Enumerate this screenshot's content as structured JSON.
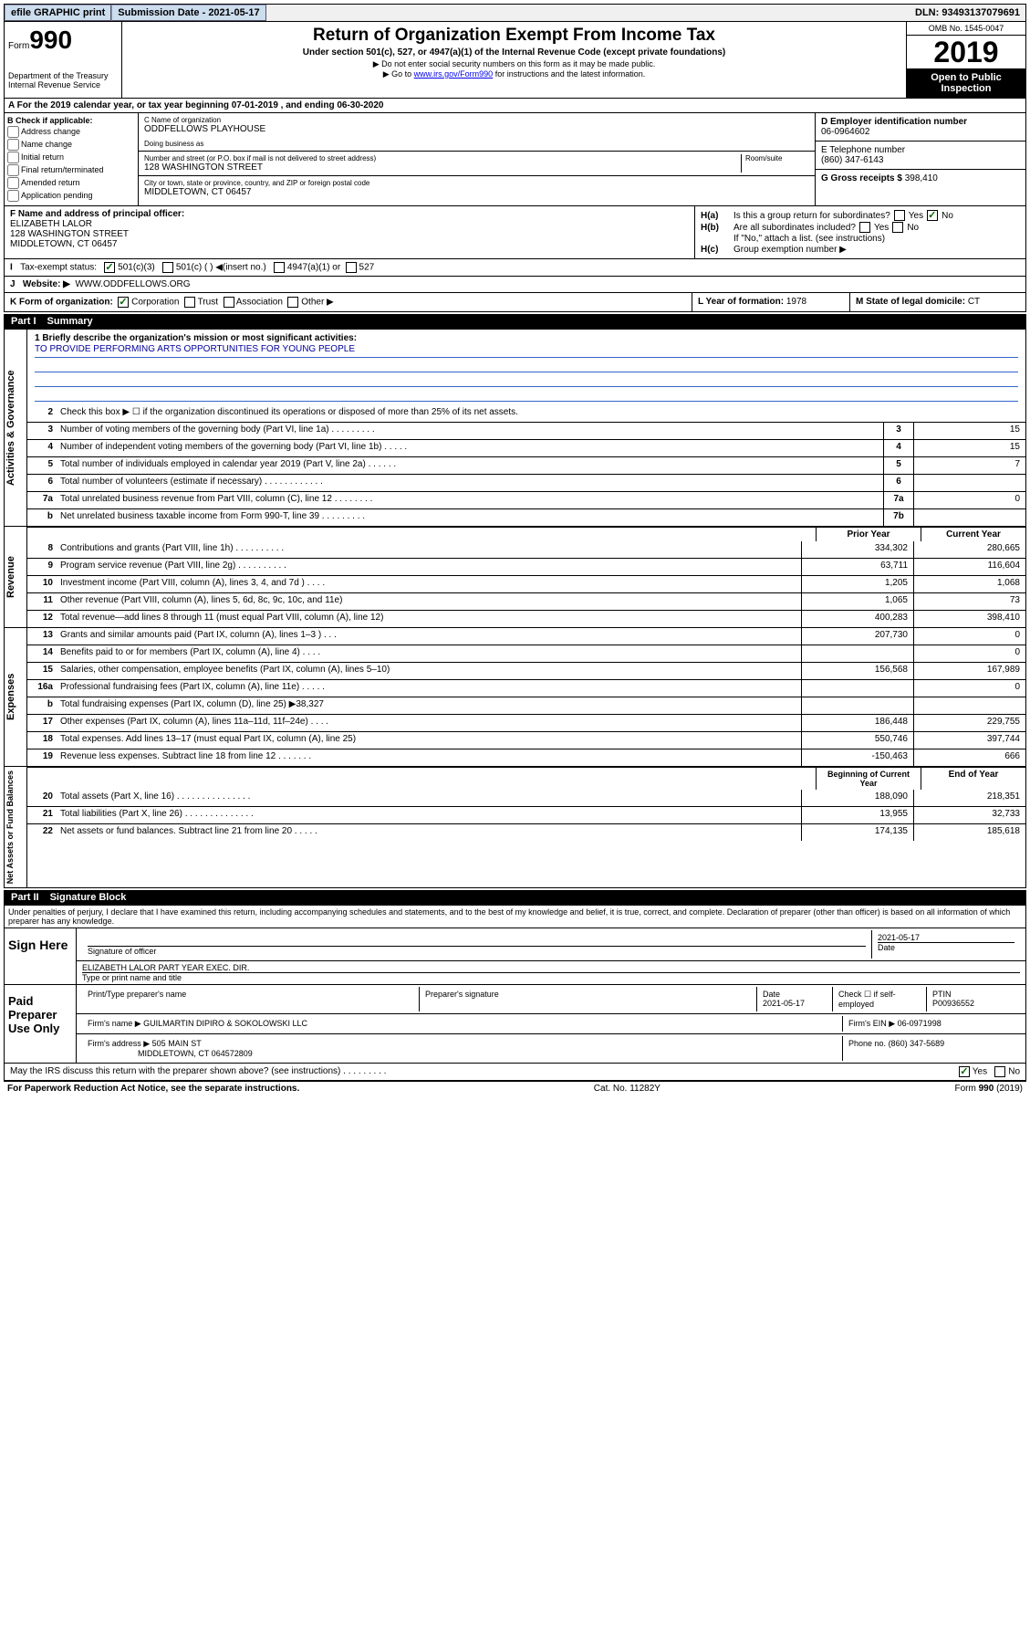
{
  "colors": {
    "link": "#0000ee",
    "mission_line": "#3366cc",
    "mission_text": "#000099",
    "black_bg": "#000000",
    "check_green": "#006600"
  },
  "top_bar": {
    "efile": "efile GRAPHIC print",
    "submission": "Submission Date - 2021-05-17",
    "dln": "DLN: 93493137079691"
  },
  "header": {
    "form_prefix": "Form",
    "form_number": "990",
    "title": "Return of Organization Exempt From Income Tax",
    "subtitle": "Under section 501(c), 527, or 4947(a)(1) of the Internal Revenue Code (except private foundations)",
    "note1": "▶ Do not enter social security numbers on this form as it may be made public.",
    "note2_pre": "▶ Go to ",
    "note2_link": "www.irs.gov/Form990",
    "note2_post": " for instructions and the latest information.",
    "dept": "Department of the Treasury\nInternal Revenue Service",
    "omb": "OMB No. 1545-0047",
    "year": "2019",
    "inspect": "Open to Public Inspection"
  },
  "line_a": "For the 2019 calendar year, or tax year beginning 07-01-2019    , and ending 06-30-2020",
  "block_b": {
    "label": "B Check if applicable:",
    "opts": [
      "Address change",
      "Name change",
      "Initial return",
      "Final return/terminated",
      "Amended return",
      "Application pending"
    ]
  },
  "block_c": {
    "name_lbl": "C Name of organization",
    "name": "ODDFELLOWS PLAYHOUSE",
    "dba_lbl": "Doing business as",
    "addr_lbl": "Number and street (or P.O. box if mail is not delivered to street address)",
    "room_lbl": "Room/suite",
    "addr": "128 WASHINGTON STREET",
    "city_lbl": "City or town, state or province, country, and ZIP or foreign postal code",
    "city": "MIDDLETOWN, CT  06457"
  },
  "block_d": {
    "lbl": "D Employer identification number",
    "val": "06-0964602"
  },
  "block_e": {
    "lbl": "E Telephone number",
    "val": "(860) 347-6143"
  },
  "block_g": {
    "lbl": "G Gross receipts $",
    "val": "398,410"
  },
  "block_f": {
    "lbl": "F Name and address of principal officer:",
    "name": "ELIZABETH LALOR",
    "addr": "128 WASHINGTON STREET",
    "city": "MIDDLETOWN, CT  06457"
  },
  "block_h": {
    "a": "Is this a group return for subordinates?",
    "b": "Are all subordinates included?",
    "note": "If \"No,\" attach a list. (see instructions)",
    "c": "Group exemption number ▶"
  },
  "block_i": {
    "lbl": "Tax-exempt status:",
    "opt1": "501(c)(3)",
    "opt2": "501(c) (  ) ◀(insert no.)",
    "opt3": "4947(a)(1) or",
    "opt4": "527"
  },
  "block_j": {
    "lbl": "Website: ▶",
    "val": "WWW.ODDFELLOWS.ORG"
  },
  "block_k": "K Form of organization:",
  "k_opts": [
    "Corporation",
    "Trust",
    "Association",
    "Other ▶"
  ],
  "block_l": {
    "lbl": "L Year of formation:",
    "val": "1978"
  },
  "block_m": {
    "lbl": "M State of legal domicile:",
    "val": "CT"
  },
  "part1": {
    "label": "Part I",
    "title": "Summary"
  },
  "mission": {
    "q": "1  Briefly describe the organization's mission or most significant activities:",
    "text": "TO PROVIDE PERFORMING ARTS OPPORTUNITIES FOR YOUNG PEOPLE"
  },
  "governance": {
    "vlabel": "Activities & Governance",
    "rows": [
      {
        "n": "2",
        "d": "Check this box ▶ ☐  if the organization discontinued its operations or disposed of more than 25% of its net assets."
      },
      {
        "n": "3",
        "d": "Number of voting members of the governing body (Part VI, line 1a)  .  .  .  .  .  .  .  .  .",
        "box": "3",
        "v": "15"
      },
      {
        "n": "4",
        "d": "Number of independent voting members of the governing body (Part VI, line 1b)  .  .  .  .  .",
        "box": "4",
        "v": "15"
      },
      {
        "n": "5",
        "d": "Total number of individuals employed in calendar year 2019 (Part V, line 2a)  .  .  .  .  .  .",
        "box": "5",
        "v": "7"
      },
      {
        "n": "6",
        "d": "Total number of volunteers (estimate if necessary)  .  .  .  .  .  .  .  .  .  .  .  .",
        "box": "6",
        "v": ""
      },
      {
        "n": "7a",
        "d": "Total unrelated business revenue from Part VIII, column (C), line 12  .  .  .  .  .  .  .  .",
        "box": "7a",
        "v": "0"
      },
      {
        "n": "b",
        "d": "Net unrelated business taxable income from Form 990-T, line 39  .  .  .  .  .  .  .  .  .",
        "box": "7b",
        "v": ""
      }
    ]
  },
  "revenue": {
    "vlabel": "Revenue",
    "h1": "Prior Year",
    "h2": "Current Year",
    "rows": [
      {
        "n": "8",
        "d": "Contributions and grants (Part VIII, line 1h)  .  .  .  .  .  .  .  .  .  .",
        "v1": "334,302",
        "v2": "280,665"
      },
      {
        "n": "9",
        "d": "Program service revenue (Part VIII, line 2g)  .  .  .  .  .  .  .  .  .  .",
        "v1": "63,711",
        "v2": "116,604"
      },
      {
        "n": "10",
        "d": "Investment income (Part VIII, column (A), lines 3, 4, and 7d )  .  .  .  .",
        "v1": "1,205",
        "v2": "1,068"
      },
      {
        "n": "11",
        "d": "Other revenue (Part VIII, column (A), lines 5, 6d, 8c, 9c, 10c, and 11e)",
        "v1": "1,065",
        "v2": "73"
      },
      {
        "n": "12",
        "d": "Total revenue—add lines 8 through 11 (must equal Part VIII, column (A), line 12)",
        "v1": "400,283",
        "v2": "398,410"
      }
    ]
  },
  "expenses": {
    "vlabel": "Expenses",
    "rows": [
      {
        "n": "13",
        "d": "Grants and similar amounts paid (Part IX, column (A), lines 1–3 )  .  .  .",
        "v1": "207,730",
        "v2": "0"
      },
      {
        "n": "14",
        "d": "Benefits paid to or for members (Part IX, column (A), line 4)  .  .  .  .",
        "v1": "",
        "v2": "0"
      },
      {
        "n": "15",
        "d": "Salaries, other compensation, employee benefits (Part IX, column (A), lines 5–10)",
        "v1": "156,568",
        "v2": "167,989"
      },
      {
        "n": "16a",
        "d": "Professional fundraising fees (Part IX, column (A), line 11e)  .  .  .  .  .",
        "v1": "",
        "v2": "0"
      },
      {
        "n": "b",
        "d": "Total fundraising expenses (Part IX, column (D), line 25) ▶38,327",
        "v1": "",
        "v2": ""
      },
      {
        "n": "17",
        "d": "Other expenses (Part IX, column (A), lines 11a–11d, 11f–24e)  .  .  .  .",
        "v1": "186,448",
        "v2": "229,755"
      },
      {
        "n": "18",
        "d": "Total expenses. Add lines 13–17 (must equal Part IX, column (A), line 25)",
        "v1": "550,746",
        "v2": "397,744"
      },
      {
        "n": "19",
        "d": "Revenue less expenses. Subtract line 18 from line 12  .  .  .  .  .  .  .",
        "v1": "-150,463",
        "v2": "666"
      }
    ]
  },
  "netassets": {
    "vlabel": "Net Assets or Fund Balances",
    "h1": "Beginning of Current Year",
    "h2": "End of Year",
    "rows": [
      {
        "n": "20",
        "d": "Total assets (Part X, line 16)  .  .  .  .  .  .  .  .  .  .  .  .  .  .  .",
        "v1": "188,090",
        "v2": "218,351"
      },
      {
        "n": "21",
        "d": "Total liabilities (Part X, line 26)  .  .  .  .  .  .  .  .  .  .  .  .  .  .",
        "v1": "13,955",
        "v2": "32,733"
      },
      {
        "n": "22",
        "d": "Net assets or fund balances. Subtract line 21 from line 20  .  .  .  .  .",
        "v1": "174,135",
        "v2": "185,618"
      }
    ]
  },
  "part2": {
    "label": "Part II",
    "title": "Signature Block"
  },
  "perjury": "Under penalties of perjury, I declare that I have examined this return, including accompanying schedules and statements, and to the best of my knowledge and belief, it is true, correct, and complete. Declaration of preparer (other than officer) is based on all information of which preparer has any knowledge.",
  "sign_here": {
    "label": "Sign Here",
    "sig_lbl": "Signature of officer",
    "date": "2021-05-17",
    "date_lbl": "Date",
    "name": "ELIZABETH LALOR  PART YEAR EXEC. DIR.",
    "name_lbl": "Type or print name and title"
  },
  "preparer": {
    "label": "Paid Preparer Use Only",
    "h_name": "Print/Type preparer's name",
    "h_sig": "Preparer's signature",
    "h_date": "Date",
    "date": "2021-05-17",
    "h_check": "Check ☐ if self-employed",
    "h_ptin": "PTIN",
    "ptin": "P00936552",
    "firm_name_lbl": "Firm's name    ▶",
    "firm_name": "GUILMARTIN DIPIRO & SOKOLOWSKI LLC",
    "firm_ein_lbl": "Firm's EIN ▶",
    "firm_ein": "06-0971998",
    "firm_addr_lbl": "Firm's address ▶",
    "firm_addr": "505 MAIN ST",
    "firm_city": "MIDDLETOWN, CT  064572809",
    "phone_lbl": "Phone no.",
    "phone": "(860) 347-5689"
  },
  "discuss": "May the IRS discuss this return with the preparer shown above? (see instructions)  .  .  .  .  .  .  .  .  .",
  "footer": {
    "left": "For Paperwork Reduction Act Notice, see the separate instructions.",
    "mid": "Cat. No. 11282Y",
    "right": "Form 990 (2019)"
  }
}
